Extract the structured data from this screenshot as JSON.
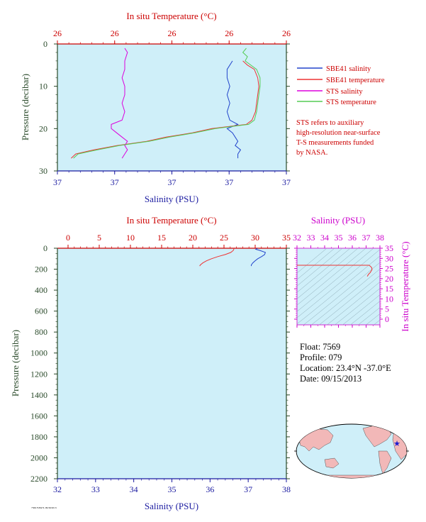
{
  "colors": {
    "plot_bg": "#cfeff9",
    "red": "#cc0000",
    "blue": "#1a1aa0",
    "dark_green": "#2a4a2a",
    "magenta": "#cc00cc",
    "sbe_salinity": "#2244cc",
    "sbe_temperature": "#ee3333",
    "sts_salinity": "#dd00dd",
    "sts_temperature": "#55cc55",
    "map_land": "#f2b8b8",
    "map_ocean": "#cfeff9"
  },
  "legend": {
    "items": [
      {
        "label": "SBE41 salinity",
        "color": "#2244cc"
      },
      {
        "label": "SBE41 temperature",
        "color": "#ee3333"
      },
      {
        "label": "STS salinity",
        "color": "#dd00dd"
      },
      {
        "label": "STS temperature",
        "color": "#55cc55"
      }
    ],
    "note_lines": [
      "STS refers to auxiliary",
      "high-resolution near-surface",
      "T-S measurements funded",
      "by NASA."
    ]
  },
  "info": {
    "float": "Float:  7569",
    "profile": "Profile:  079",
    "location": "Location:  23.4°N  -37.0°E",
    "date": "Date:  09/15/2013"
  },
  "footer_tiny": "7569 F2847L 09/30/2013",
  "chart_data": [
    {
      "type": "line",
      "id": "top",
      "title": "In situ Temperature (°C)",
      "xlabel": "Salinity (PSU)",
      "ylabel": "Pressure (decibar)",
      "temperature_tick_labels": [
        "26",
        "26",
        "26",
        "26",
        "26"
      ],
      "salinity_tick_labels": [
        "37",
        "37",
        "37",
        "37",
        "37"
      ],
      "xlim_salinity": [
        36.9,
        37.75
      ],
      "xlim_temperature": [
        25.6,
        27.6
      ],
      "ylim": [
        30,
        0
      ],
      "yticks": [
        0,
        10,
        20,
        30
      ],
      "series": [
        {
          "name": "SBE41 salinity",
          "color_key": "sbe_salinity",
          "axis": "salinity",
          "pressure": [
            4,
            6,
            8,
            10,
            12,
            14,
            16,
            18,
            19,
            20,
            21,
            22,
            23,
            24,
            25,
            26,
            27
          ],
          "values": [
            37.55,
            37.53,
            37.53,
            37.54,
            37.53,
            37.54,
            37.53,
            37.54,
            37.57,
            37.53,
            37.55,
            37.56,
            37.57,
            37.56,
            37.58,
            37.57,
            37.57
          ]
        },
        {
          "name": "SBE41 temperature",
          "color_key": "sbe_temperature",
          "axis": "temperature",
          "pressure": [
            4,
            5,
            6,
            8,
            10,
            12,
            14,
            16,
            18,
            19,
            20,
            21,
            22,
            23,
            24,
            25,
            26,
            27
          ],
          "values": [
            27.22,
            27.26,
            27.32,
            27.35,
            27.36,
            27.35,
            27.34,
            27.33,
            27.3,
            27.25,
            26.95,
            26.78,
            26.55,
            26.38,
            26.12,
            25.92,
            25.76,
            25.72
          ]
        },
        {
          "name": "STS salinity",
          "color_key": "sts_salinity",
          "axis": "salinity",
          "pressure": [
            1,
            2,
            4,
            6,
            8,
            10,
            12,
            14,
            16,
            18,
            19,
            20,
            21,
            22,
            23,
            24,
            25,
            26,
            27
          ],
          "values": [
            37.15,
            37.16,
            37.15,
            37.15,
            37.14,
            37.15,
            37.15,
            37.14,
            37.15,
            37.14,
            37.1,
            37.1,
            37.12,
            37.14,
            37.16,
            37.15,
            37.16,
            37.15,
            37.14
          ]
        },
        {
          "name": "STS temperature",
          "color_key": "sts_temperature",
          "axis": "temperature",
          "pressure": [
            1,
            2,
            3,
            4,
            6,
            8,
            10,
            12,
            14,
            16,
            18,
            19,
            20,
            21,
            22,
            23,
            24,
            25,
            26,
            27
          ],
          "values": [
            27.25,
            27.22,
            27.26,
            27.24,
            27.34,
            27.37,
            27.37,
            27.36,
            27.35,
            27.34,
            27.32,
            27.27,
            26.98,
            26.8,
            26.58,
            26.4,
            26.14,
            25.95,
            25.78,
            25.74
          ]
        }
      ]
    },
    {
      "type": "line",
      "id": "bottom",
      "title": "In situ Temperature (°C)",
      "xlabel": "Salinity (PSU)",
      "ylabel": "Pressure (decibar)",
      "temperature_ticks": [
        0,
        5,
        10,
        15,
        20,
        25,
        30,
        35
      ],
      "salinity_ticks": [
        32,
        33,
        34,
        35,
        36,
        37,
        38
      ],
      "xlim_temperature": [
        0,
        35
      ],
      "xlim_salinity": [
        32,
        38
      ],
      "ylim": [
        2200,
        0
      ],
      "yticks": [
        0,
        200,
        400,
        600,
        800,
        1000,
        1200,
        1400,
        1600,
        1800,
        2000,
        2200
      ],
      "series": [
        {
          "name": "Temperature",
          "color_key": "sbe_temperature",
          "axis": "temperature",
          "pressure": [
            0,
            5,
            20,
            40,
            60,
            80,
            100,
            120,
            140,
            160,
            170
          ],
          "values": [
            26.6,
            26.6,
            26.5,
            26.1,
            25.2,
            24.0,
            23.0,
            22.2,
            21.6,
            21.2,
            21.1
          ]
        },
        {
          "name": "Salinity",
          "color_key": "sbe_salinity",
          "axis": "salinity",
          "pressure": [
            0,
            10,
            20,
            40,
            60,
            80,
            100,
            120,
            140,
            160,
            170
          ],
          "values": [
            37.25,
            37.2,
            37.3,
            37.45,
            37.43,
            37.35,
            37.25,
            37.18,
            37.12,
            37.08,
            37.08
          ]
        }
      ]
    },
    {
      "type": "scatter",
      "id": "ts",
      "title": "Salinity (PSU)",
      "ylabel": "In situ Temperature (°C)",
      "xticks": [
        32,
        33,
        34,
        35,
        36,
        37,
        38
      ],
      "yticks": [
        0,
        5,
        10,
        15,
        20,
        25,
        30,
        35
      ],
      "xlim": [
        32,
        38
      ],
      "ylim": [
        0,
        35
      ],
      "points": {
        "salinity": [
          37.08,
          37.18,
          37.3,
          37.43,
          37.4,
          37.3,
          37.25,
          37.2
        ],
        "temperature": [
          21.1,
          22.2,
          23.0,
          24.5,
          25.5,
          26.1,
          26.5,
          26.6
        ]
      },
      "density_contours": true
    }
  ],
  "map": {
    "marker_lat": 23.4,
    "marker_lon": -37.0,
    "marker_symbol": "★"
  }
}
